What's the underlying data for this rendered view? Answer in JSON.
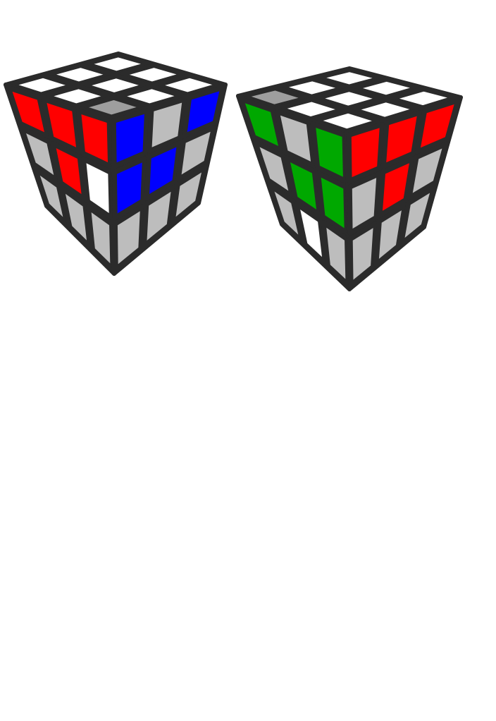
{
  "palette": {
    "white": "#ffffff",
    "grey": "#bdbdbd",
    "dark_grey": "#9e9e9e",
    "red": "#ff0000",
    "blue": "#0000ff",
    "green": "#00a800",
    "frame": "#2b2b2b"
  },
  "cubes": [
    {
      "name": "cube-left",
      "top": [
        [
          "white",
          "white",
          "white"
        ],
        [
          "white",
          "white",
          "white"
        ],
        [
          "white",
          "white",
          "dark_grey"
        ]
      ],
      "left": [
        [
          "red",
          "red",
          "red"
        ],
        [
          "grey",
          "red",
          "white"
        ],
        [
          "grey",
          "grey",
          "grey"
        ]
      ],
      "right": [
        [
          "blue",
          "grey",
          "blue"
        ],
        [
          "blue",
          "blue",
          "grey"
        ],
        [
          "grey",
          "grey",
          "grey"
        ]
      ]
    },
    {
      "name": "cube-right",
      "top": [
        [
          "white",
          "white",
          "white"
        ],
        [
          "white",
          "white",
          "white"
        ],
        [
          "dark_grey",
          "white",
          "white"
        ]
      ],
      "left": [
        [
          "green",
          "grey",
          "green"
        ],
        [
          "grey",
          "green",
          "green"
        ],
        [
          "grey",
          "white",
          "grey"
        ]
      ],
      "right": [
        [
          "red",
          "red",
          "red"
        ],
        [
          "grey",
          "red",
          "grey"
        ],
        [
          "grey",
          "grey",
          "grey"
        ]
      ]
    }
  ]
}
